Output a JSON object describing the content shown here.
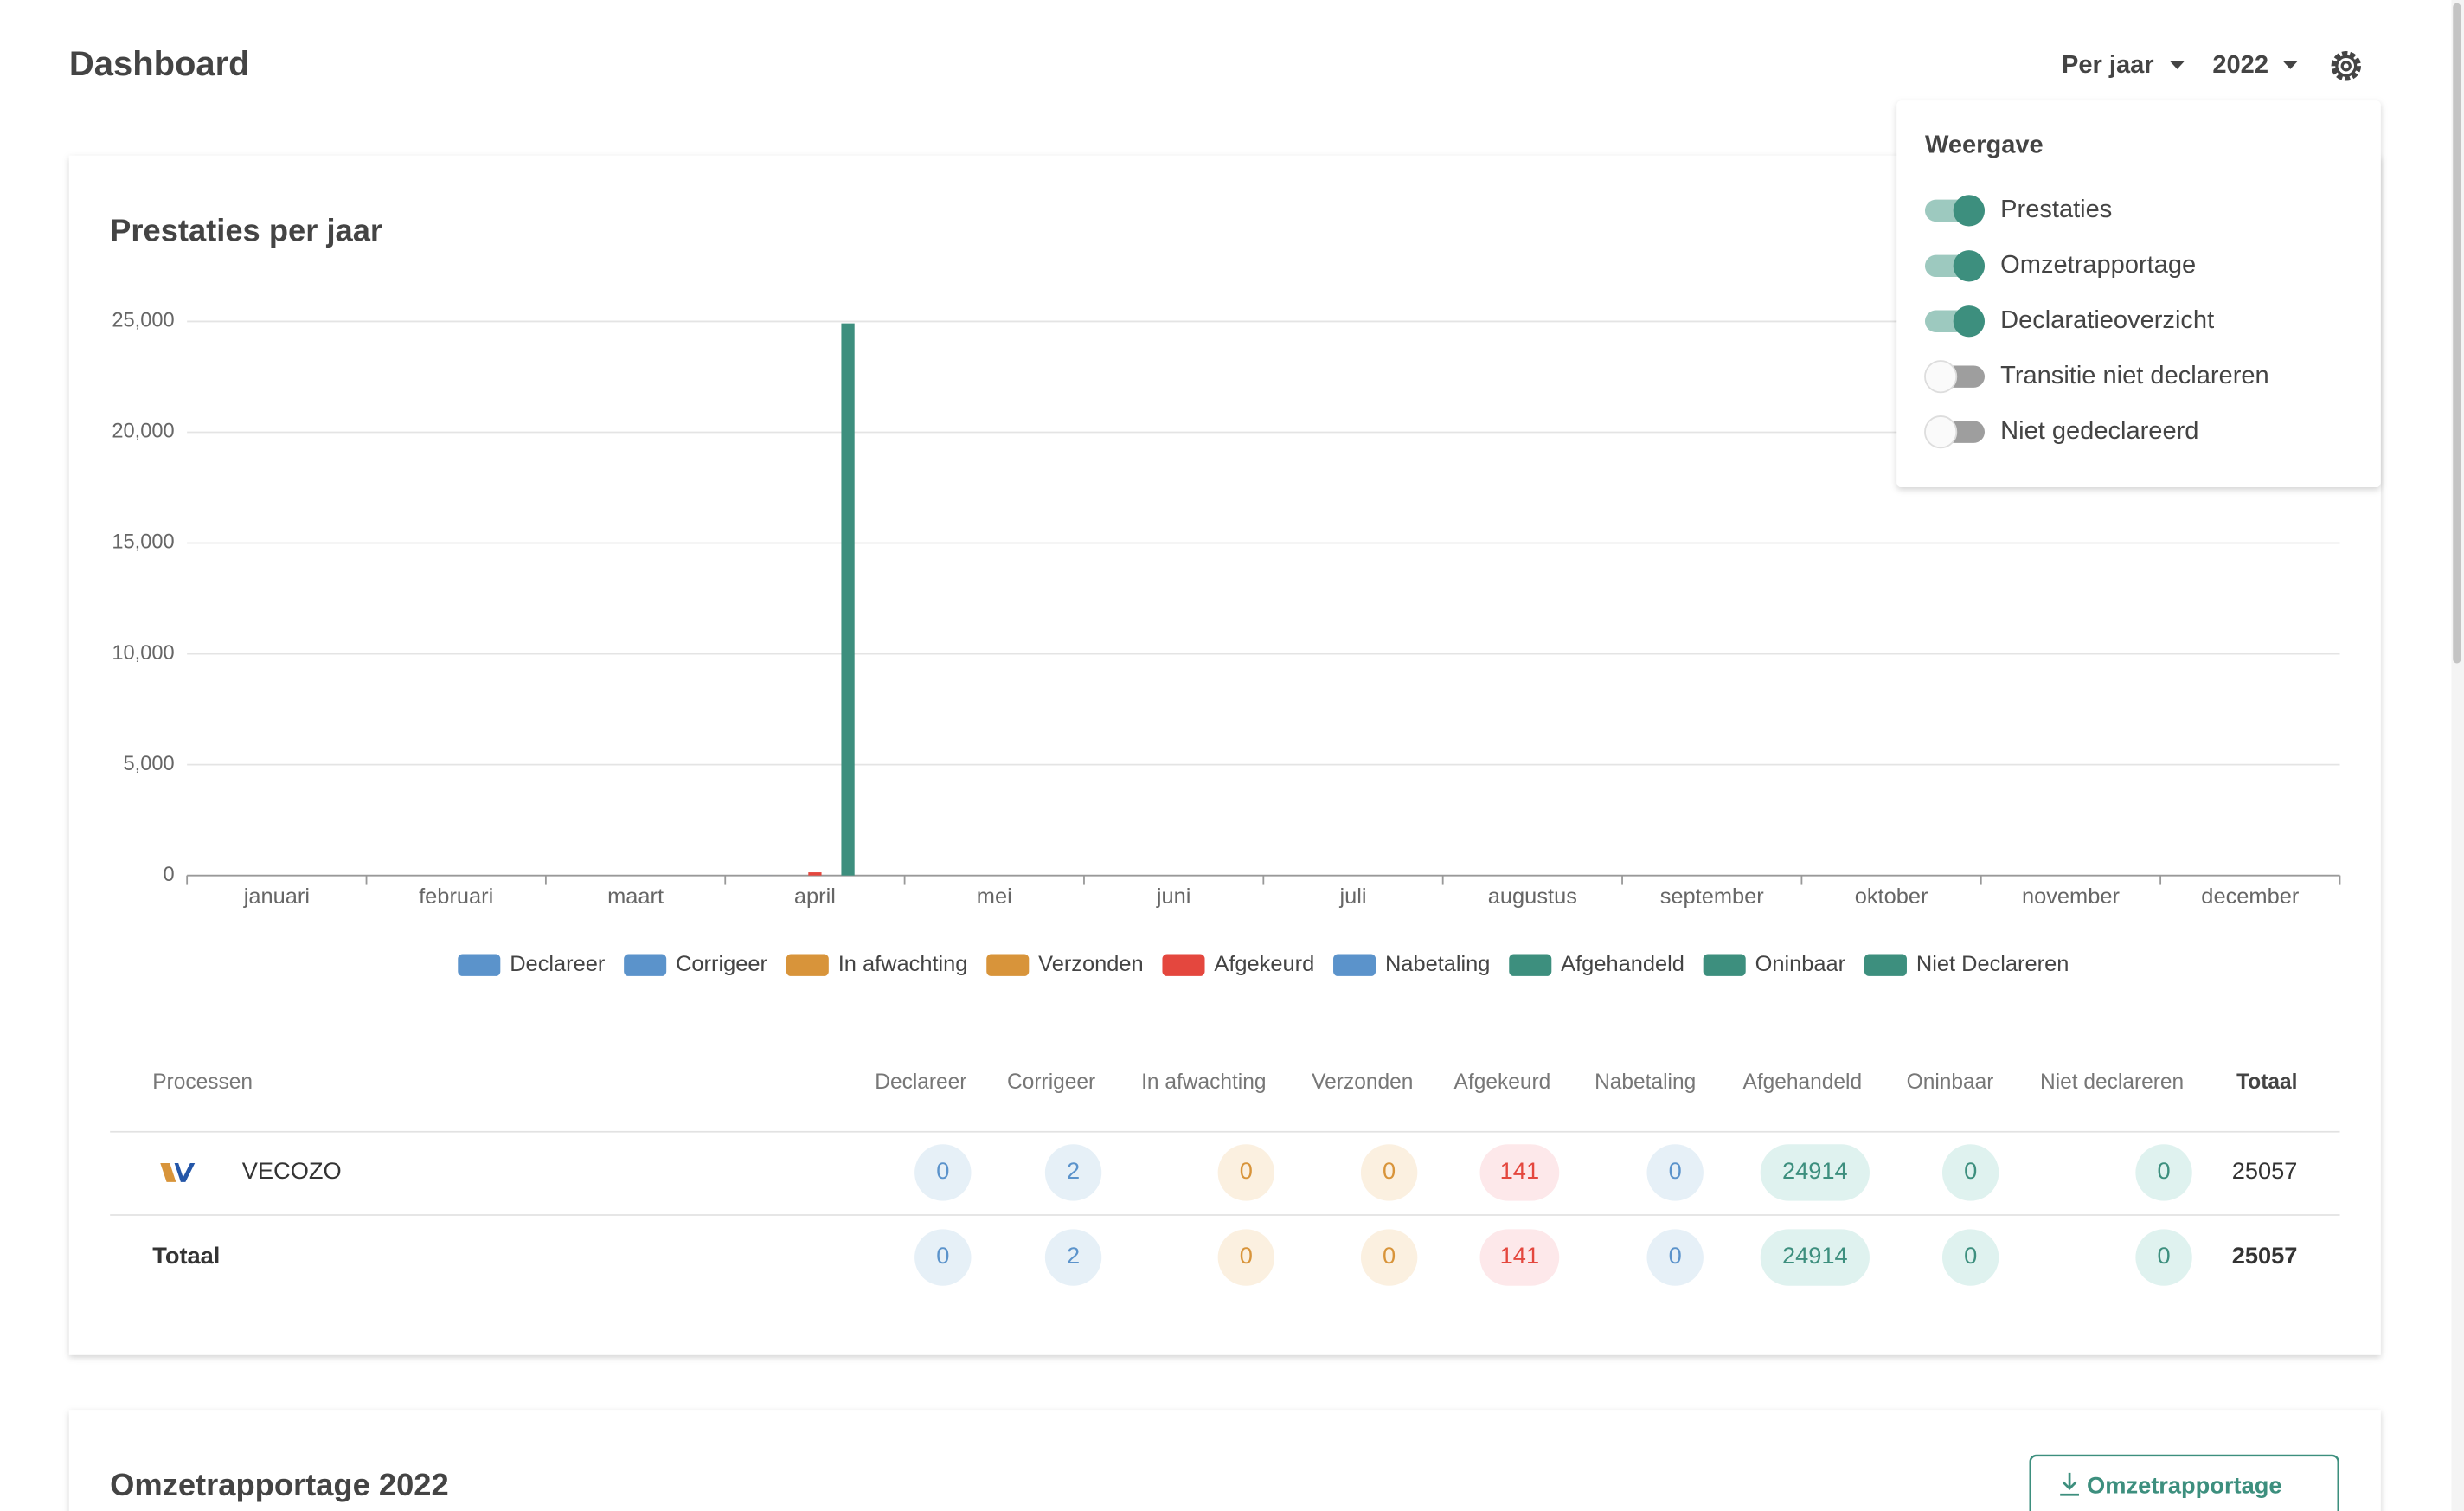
{
  "header": {
    "title": "Dashboard",
    "period": "Per jaar",
    "year": "2022"
  },
  "settings_panel": {
    "title": "Weergave",
    "options": [
      {
        "label": "Prestaties",
        "on": true
      },
      {
        "label": "Omzetrapportage",
        "on": true
      },
      {
        "label": "Declaratieoverzicht",
        "on": true
      },
      {
        "label": "Transitie niet declareren",
        "on": false
      },
      {
        "label": "Niet gedeclareerd",
        "on": false
      }
    ]
  },
  "chart_data": {
    "type": "bar",
    "title": "Prestaties per jaar",
    "categories": [
      "januari",
      "februari",
      "maart",
      "april",
      "mei",
      "juni",
      "juli",
      "augustus",
      "september",
      "oktober",
      "november",
      "december"
    ],
    "series": [
      {
        "name": "Declareer",
        "color": "#5b93cb",
        "values": [
          0,
          0,
          0,
          0,
          0,
          0,
          0,
          0,
          0,
          0,
          0,
          0
        ]
      },
      {
        "name": "Corrigeer",
        "color": "#5b93cb",
        "values": [
          0,
          0,
          0,
          2,
          0,
          0,
          0,
          0,
          0,
          0,
          0,
          0
        ]
      },
      {
        "name": "In afwachting",
        "color": "#d8943a",
        "values": [
          0,
          0,
          0,
          0,
          0,
          0,
          0,
          0,
          0,
          0,
          0,
          0
        ]
      },
      {
        "name": "Verzonden",
        "color": "#d8943a",
        "values": [
          0,
          0,
          0,
          0,
          0,
          0,
          0,
          0,
          0,
          0,
          0,
          0
        ]
      },
      {
        "name": "Afgekeurd",
        "color": "#e4473e",
        "values": [
          0,
          0,
          0,
          141,
          0,
          0,
          0,
          0,
          0,
          0,
          0,
          0
        ]
      },
      {
        "name": "Nabetaling",
        "color": "#5b93cb",
        "values": [
          0,
          0,
          0,
          0,
          0,
          0,
          0,
          0,
          0,
          0,
          0,
          0
        ]
      },
      {
        "name": "Afgehandeld",
        "color": "#3d8f7e",
        "values": [
          0,
          0,
          0,
          24914,
          0,
          0,
          0,
          0,
          0,
          0,
          0,
          0
        ]
      },
      {
        "name": "Oninbaar",
        "color": "#3d8f7e",
        "values": [
          0,
          0,
          0,
          0,
          0,
          0,
          0,
          0,
          0,
          0,
          0,
          0
        ]
      },
      {
        "name": "Niet Declareren",
        "color": "#3d8f7e",
        "values": [
          0,
          0,
          0,
          0,
          0,
          0,
          0,
          0,
          0,
          0,
          0,
          0
        ]
      }
    ],
    "ylim": [
      0,
      25000
    ],
    "yticks": [
      0,
      {
        "value": 5000,
        "label": "5,000"
      },
      {
        "value": 10000,
        "label": "10,000"
      },
      {
        "value": 15000,
        "label": "15,000"
      },
      {
        "value": 20000,
        "label": "20,000"
      },
      {
        "value": 25000,
        "label": "25,000"
      }
    ],
    "grid": true,
    "legend": "bottom"
  },
  "table": {
    "columns": [
      "Processen",
      "Declareer",
      "Corrigeer",
      "In afwachting",
      "Verzonden",
      "Afgekeurd",
      "Nabetaling",
      "Afgehandeld",
      "Oninbaar",
      "Niet declareren",
      "Totaal"
    ],
    "rows": [
      {
        "name": "VECOZO",
        "values": [
          "0",
          "2",
          "0",
          "0",
          "141",
          "0",
          "24914",
          "0",
          "0"
        ],
        "total": "25057"
      },
      {
        "name": "Totaal",
        "values": [
          "0",
          "2",
          "0",
          "0",
          "141",
          "0",
          "24914",
          "0",
          "0"
        ],
        "total": "25057"
      }
    ]
  },
  "section2": {
    "title": "Omzetrapportage 2022",
    "button": "Omzetrapportage"
  }
}
